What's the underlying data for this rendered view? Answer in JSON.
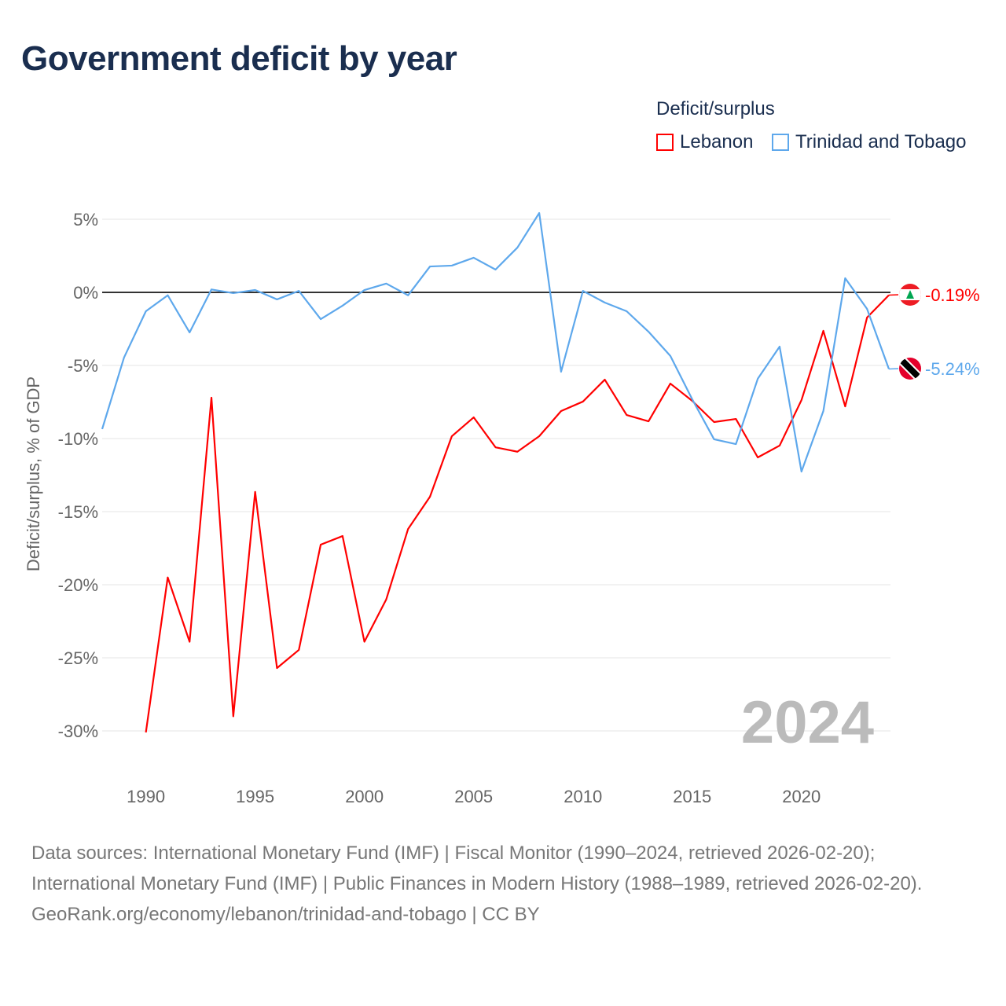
{
  "title": "Government deficit by year",
  "legend": {
    "title": "Deficit/surplus",
    "items": [
      {
        "label": "Lebanon",
        "color": "#ff0000"
      },
      {
        "label": "Trinidad and Tobago",
        "color": "#5ea8ec"
      }
    ]
  },
  "sources": {
    "line1": "Data sources: International Monetary Fund (IMF) | Fiscal Monitor (1990–2024, retrieved 2026-02-20); International Monetary Fund (IMF) | Public Finances in Modern History (1988–1989, retrieved 2026-02-20).",
    "line2": "GeoRank.org/economy/lebanon/trinidad-and-tobago | CC BY"
  },
  "chart_data": {
    "type": "line",
    "title": "Government deficit by year",
    "ylabel": "Deficit/surplus, % of GDP",
    "xlabel": "",
    "xlim": [
      1988,
      2024
    ],
    "ylim": [
      -32,
      6
    ],
    "yticks": [
      5,
      0,
      -5,
      -10,
      -15,
      -20,
      -25,
      -30
    ],
    "ytick_labels": [
      "5%",
      "0%",
      "-5%",
      "-10%",
      "-15%",
      "-20%",
      "-25%",
      "-30%"
    ],
    "xticks": [
      1990,
      1995,
      2000,
      2005,
      2010,
      2015,
      2020
    ],
    "xtick_labels": [
      "1990",
      "1995",
      "2000",
      "2005",
      "2010",
      "2015",
      "2020"
    ],
    "year_watermark": "2024",
    "grid": true,
    "legend_position": "top-right",
    "series": [
      {
        "name": "Lebanon",
        "color": "#ff0000",
        "end_label": "-0.19%",
        "start_year": 1990,
        "values": [
          -30.1,
          -19.5,
          -23.9,
          -7.2,
          -29.0,
          -13.65,
          -25.7,
          -24.46,
          -17.26,
          -16.67,
          -23.9,
          -21.0,
          -16.18,
          -13.98,
          -9.84,
          -8.55,
          -10.6,
          -10.9,
          -9.84,
          -8.12,
          -7.47,
          -5.97,
          -8.39,
          -8.82,
          -6.24,
          -7.42,
          -8.87,
          -8.66,
          -11.29,
          -10.48,
          -7.37,
          -2.63,
          -7.8,
          -1.72,
          -0.19
        ]
      },
      {
        "name": "Trinidad and Tobago",
        "color": "#5ea8ec",
        "end_label": "-5.24%",
        "start_year": 1988,
        "values": [
          -9.35,
          -4.46,
          -1.29,
          -0.2,
          -2.74,
          0.2,
          -0.05,
          0.16,
          -0.48,
          0.1,
          -1.83,
          -0.91,
          0.16,
          0.6,
          -0.2,
          1.77,
          1.83,
          2.37,
          1.56,
          3.06,
          5.43,
          -5.43,
          0.1,
          -0.7,
          -1.29,
          -2.69,
          -4.35,
          -7.31,
          -10.05,
          -10.38,
          -5.91,
          -3.71,
          -12.26,
          -8.12,
          0.97,
          -1.13,
          -5.24
        ]
      }
    ]
  }
}
